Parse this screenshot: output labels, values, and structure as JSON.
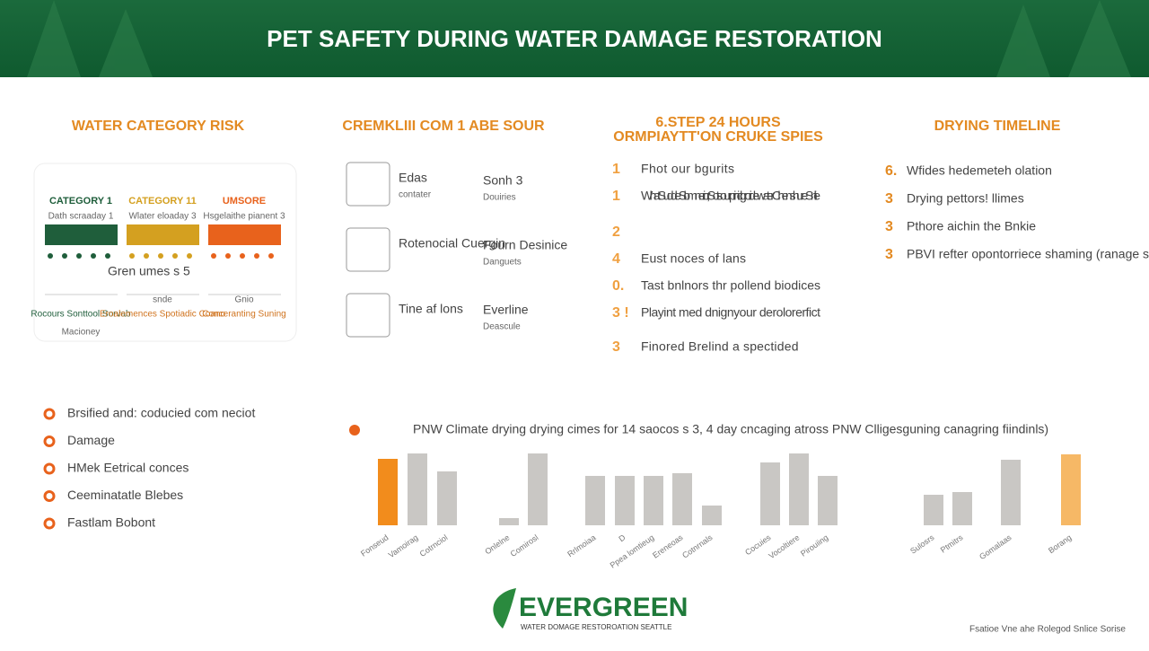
{
  "header": {
    "title": "PET SAFETY DURING WATER DAMAGE RESTORATION"
  },
  "risk": {
    "title": "WATER CATEGORY RISK",
    "columns": [
      {
        "name": "CATEGORY 1",
        "sub": "Dath scraaday 1",
        "color": "#1f5e3b",
        "foot": "Rocours Sonttool Sorvab",
        "foot2": "Macioney",
        "top": ""
      },
      {
        "name": "CATEGORY 11",
        "sub": "Wlater eloaday 3",
        "color": "#d4a020",
        "foot": "Eroalemences Spotiadic Coano",
        "foot2": "",
        "top": "snde"
      },
      {
        "name": "UMSORE",
        "sub": "Hsgelaithe pianent 3",
        "color": "#e8621c",
        "foot": "Conceranting Suning",
        "foot2": "",
        "top": "Gnio"
      }
    ],
    "note": "Gren umes s 5"
  },
  "checklist": {
    "title": "CREMKLIII COM 1 ABE SOUR",
    "left": [
      {
        "label": "Edas",
        "sub": "contater"
      },
      {
        "label": "Rotenocial Cuergin",
        "sub": ""
      },
      {
        "label": "Tine af lons",
        "sub": ""
      }
    ],
    "right": [
      {
        "label": "Sonh 3",
        "sub": "Douiries"
      },
      {
        "label": "Fourn Desinice",
        "sub": "Danguets"
      },
      {
        "label": "Everline",
        "sub": "Deascule"
      }
    ]
  },
  "steps": {
    "title": "6.STEP 24 HOURS",
    "subtitle": "ORMPIAYTT'ON CRUKE SPIES",
    "items": [
      {
        "n": "1",
        "text": "Fhot our bgurits"
      },
      {
        "n": "1",
        "text": "What Sudde Slomnerior, Sots our prinicl groride water Chen shure Snile"
      },
      {
        "n": "2",
        "text": ""
      },
      {
        "n": "4",
        "text": "Eust noces of lans"
      },
      {
        "n": "0.",
        "text": "Tast bnlnors thr pollend biodices"
      },
      {
        "n": "3 !",
        "text": "Playint med dnignyour derolorerfict"
      },
      {
        "n": "3",
        "text": "Finored Brelind a spectided"
      }
    ]
  },
  "timeline": {
    "title": "DRYING TIMELINE",
    "items": [
      {
        "n": "6.",
        "text": "Wfides hedemeteh olation"
      },
      {
        "n": "3",
        "text": "Drying pettors! llimes"
      },
      {
        "n": "3",
        "text": "Pthore aichin the Bnkie"
      },
      {
        "n": "3",
        "text": "PBVI refter opontorriece shaming (ranage solaio)"
      }
    ]
  },
  "bullets": [
    "Brsified and: coducied com neciot",
    "Damage",
    "HMek Eetrical conces",
    "Ceeminatatle Blebes",
    "Fastlam Bobont"
  ],
  "chart_data": {
    "type": "bar",
    "title": "PNW Climate drying drying cimes for 14 saocos s 3, 4 day cncaging atross PNW Clligesguning canagring fiindinls)",
    "categories": [
      "Fonseud",
      "Vamoirag",
      "Cotrnciol",
      "Onlelne",
      "Comirosl",
      "Rrlmoiaa",
      "D",
      "Ppea lomtieug",
      "Ereneoas",
      "Cotnrnals",
      "Cocuies",
      "Vocoltiere",
      "Pirouiing",
      "Sulosrs",
      "Ptmitrs",
      "Gomalaas",
      "Borang"
    ],
    "values": [
      74,
      80,
      60,
      8,
      80,
      55,
      55,
      55,
      58,
      22,
      70,
      80,
      55,
      34,
      37,
      73,
      79
    ],
    "colors": [
      "#f28c1c",
      "#c9c7c4",
      "#c9c7c4",
      "#c9c7c4",
      "#c9c7c4",
      "#c9c7c4",
      "#c9c7c4",
      "#c9c7c4",
      "#c9c7c4",
      "#c9c7c4",
      "#c9c7c4",
      "#c9c7c4",
      "#c9c7c4",
      "#c9c7c4",
      "#c9c7c4",
      "#c9c7c4",
      "#f6b866"
    ],
    "ylim": [
      0,
      100
    ]
  },
  "footer": {
    "logo": "EVERGREEN",
    "tagline": "WATER DOMAGE RESTOROATION SEATTLE",
    "note": "Fsatioe Vne ahe Rolegod Snlice Sorise"
  }
}
